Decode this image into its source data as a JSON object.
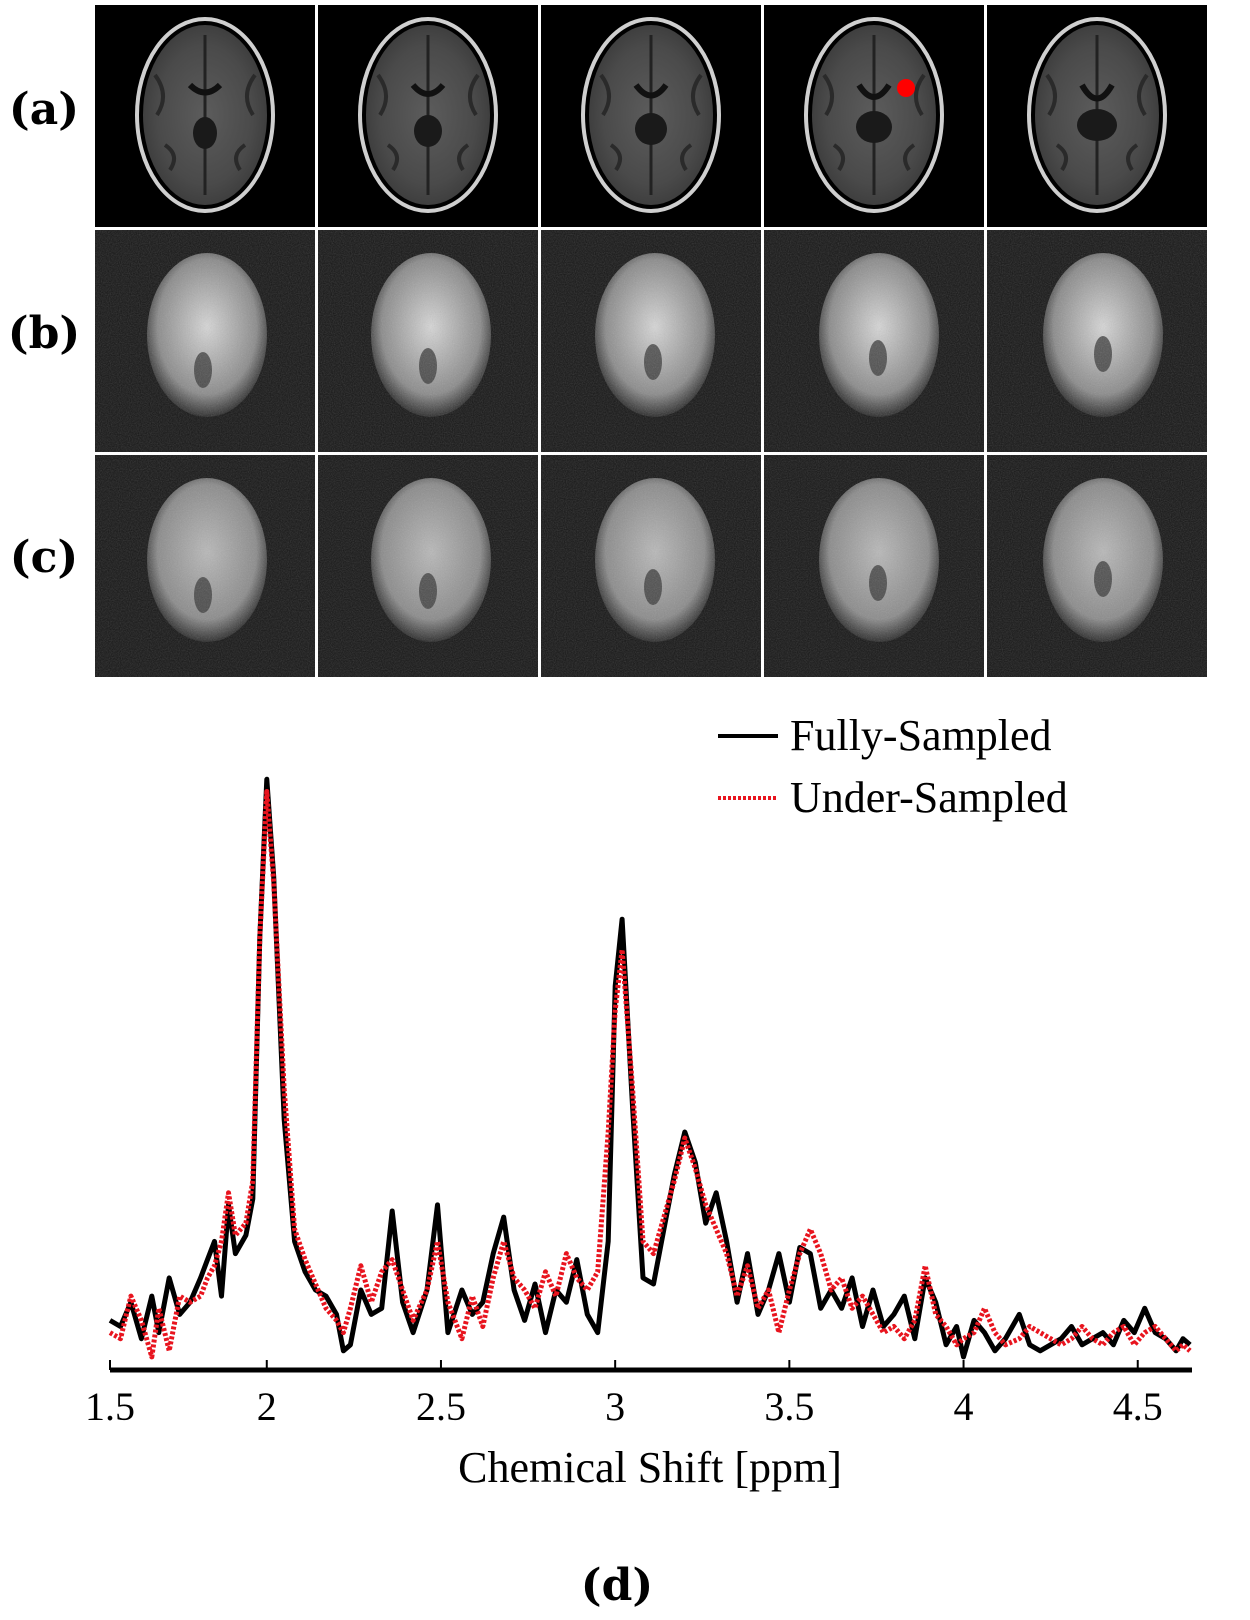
{
  "panels": {
    "rows": [
      {
        "label": "(a)",
        "type": "anatomical"
      },
      {
        "label": "(b)",
        "type": "fully-sampled-map"
      },
      {
        "label": "(c)",
        "type": "under-sampled-map"
      }
    ],
    "slices_per_row": 5,
    "marker": {
      "row": 0,
      "col": 3,
      "color": "#ff0000"
    },
    "d_label": "(d)"
  },
  "chart_data": {
    "type": "line",
    "xlabel": "Chemical Shift [ppm]",
    "xlim": [
      1.55,
      4.65
    ],
    "ylim": [
      0,
      1.0
    ],
    "xticks": [
      1.5,
      2,
      2.5,
      3,
      3.5,
      4,
      4.5
    ],
    "xtick_labels": [
      "1.5",
      "2",
      "2.5",
      "3",
      "3.5",
      "4",
      "4.5"
    ],
    "legend_position": "top-right",
    "series": [
      {
        "name": "Fully-Sampled",
        "color": "#000000",
        "style": "solid",
        "points": [
          [
            1.55,
            0.07
          ],
          [
            1.58,
            0.06
          ],
          [
            1.61,
            0.1
          ],
          [
            1.64,
            0.04
          ],
          [
            1.67,
            0.11
          ],
          [
            1.69,
            0.05
          ],
          [
            1.72,
            0.14
          ],
          [
            1.75,
            0.08
          ],
          [
            1.78,
            0.1
          ],
          [
            1.81,
            0.14
          ],
          [
            1.83,
            0.17
          ],
          [
            1.85,
            0.2
          ],
          [
            1.87,
            0.11
          ],
          [
            1.89,
            0.26
          ],
          [
            1.91,
            0.18
          ],
          [
            1.94,
            0.21
          ],
          [
            1.96,
            0.27
          ],
          [
            1.98,
            0.7
          ],
          [
            2.0,
            0.96
          ],
          [
            2.02,
            0.8
          ],
          [
            2.05,
            0.4
          ],
          [
            2.08,
            0.2
          ],
          [
            2.11,
            0.15
          ],
          [
            2.14,
            0.12
          ],
          [
            2.17,
            0.11
          ],
          [
            2.2,
            0.08
          ],
          [
            2.22,
            0.02
          ],
          [
            2.24,
            0.03
          ],
          [
            2.27,
            0.12
          ],
          [
            2.3,
            0.08
          ],
          [
            2.33,
            0.09
          ],
          [
            2.36,
            0.25
          ],
          [
            2.39,
            0.1
          ],
          [
            2.42,
            0.05
          ],
          [
            2.46,
            0.12
          ],
          [
            2.49,
            0.26
          ],
          [
            2.52,
            0.05
          ],
          [
            2.56,
            0.12
          ],
          [
            2.59,
            0.08
          ],
          [
            2.62,
            0.1
          ],
          [
            2.65,
            0.18
          ],
          [
            2.68,
            0.24
          ],
          [
            2.71,
            0.12
          ],
          [
            2.74,
            0.07
          ],
          [
            2.77,
            0.13
          ],
          [
            2.8,
            0.05
          ],
          [
            2.83,
            0.12
          ],
          [
            2.86,
            0.1
          ],
          [
            2.89,
            0.17
          ],
          [
            2.92,
            0.08
          ],
          [
            2.95,
            0.05
          ],
          [
            2.98,
            0.2
          ],
          [
            3.0,
            0.62
          ],
          [
            3.02,
            0.73
          ],
          [
            3.05,
            0.42
          ],
          [
            3.08,
            0.14
          ],
          [
            3.11,
            0.13
          ],
          [
            3.14,
            0.22
          ],
          [
            3.17,
            0.31
          ],
          [
            3.2,
            0.38
          ],
          [
            3.23,
            0.33
          ],
          [
            3.26,
            0.23
          ],
          [
            3.29,
            0.28
          ],
          [
            3.32,
            0.2
          ],
          [
            3.35,
            0.1
          ],
          [
            3.38,
            0.18
          ],
          [
            3.41,
            0.08
          ],
          [
            3.44,
            0.12
          ],
          [
            3.47,
            0.18
          ],
          [
            3.5,
            0.1
          ],
          [
            3.53,
            0.19
          ],
          [
            3.56,
            0.18
          ],
          [
            3.59,
            0.09
          ],
          [
            3.62,
            0.12
          ],
          [
            3.65,
            0.09
          ],
          [
            3.68,
            0.14
          ],
          [
            3.71,
            0.06
          ],
          [
            3.74,
            0.12
          ],
          [
            3.77,
            0.06
          ],
          [
            3.8,
            0.08
          ],
          [
            3.83,
            0.11
          ],
          [
            3.86,
            0.04
          ],
          [
            3.89,
            0.14
          ],
          [
            3.92,
            0.1
          ],
          [
            3.95,
            0.03
          ],
          [
            3.98,
            0.06
          ],
          [
            4.0,
            0.01
          ],
          [
            4.03,
            0.07
          ],
          [
            4.06,
            0.05
          ],
          [
            4.09,
            0.02
          ],
          [
            4.12,
            0.04
          ],
          [
            4.16,
            0.08
          ],
          [
            4.19,
            0.03
          ],
          [
            4.22,
            0.02
          ],
          [
            4.25,
            0.03
          ],
          [
            4.28,
            0.04
          ],
          [
            4.31,
            0.06
          ],
          [
            4.34,
            0.03
          ],
          [
            4.37,
            0.04
          ],
          [
            4.4,
            0.05
          ],
          [
            4.43,
            0.03
          ],
          [
            4.46,
            0.07
          ],
          [
            4.49,
            0.05
          ],
          [
            4.52,
            0.09
          ],
          [
            4.55,
            0.05
          ],
          [
            4.58,
            0.04
          ],
          [
            4.61,
            0.02
          ],
          [
            4.63,
            0.04
          ],
          [
            4.65,
            0.03
          ]
        ]
      },
      {
        "name": "Under-Sampled",
        "color": "#e8141e",
        "style": "dotted",
        "points": [
          [
            1.55,
            0.05
          ],
          [
            1.58,
            0.04
          ],
          [
            1.61,
            0.11
          ],
          [
            1.64,
            0.07
          ],
          [
            1.67,
            0.01
          ],
          [
            1.69,
            0.09
          ],
          [
            1.72,
            0.02
          ],
          [
            1.75,
            0.11
          ],
          [
            1.78,
            0.1
          ],
          [
            1.81,
            0.11
          ],
          [
            1.83,
            0.14
          ],
          [
            1.85,
            0.16
          ],
          [
            1.87,
            0.2
          ],
          [
            1.89,
            0.28
          ],
          [
            1.91,
            0.21
          ],
          [
            1.94,
            0.23
          ],
          [
            1.96,
            0.3
          ],
          [
            1.98,
            0.7
          ],
          [
            2.0,
            0.94
          ],
          [
            2.02,
            0.79
          ],
          [
            2.05,
            0.45
          ],
          [
            2.08,
            0.22
          ],
          [
            2.11,
            0.17
          ],
          [
            2.14,
            0.13
          ],
          [
            2.17,
            0.09
          ],
          [
            2.2,
            0.07
          ],
          [
            2.22,
            0.05
          ],
          [
            2.24,
            0.09
          ],
          [
            2.27,
            0.16
          ],
          [
            2.3,
            0.1
          ],
          [
            2.33,
            0.15
          ],
          [
            2.36,
            0.17
          ],
          [
            2.39,
            0.12
          ],
          [
            2.42,
            0.07
          ],
          [
            2.46,
            0.12
          ],
          [
            2.49,
            0.2
          ],
          [
            2.52,
            0.1
          ],
          [
            2.56,
            0.04
          ],
          [
            2.59,
            0.11
          ],
          [
            2.62,
            0.06
          ],
          [
            2.65,
            0.14
          ],
          [
            2.68,
            0.2
          ],
          [
            2.71,
            0.14
          ],
          [
            2.74,
            0.12
          ],
          [
            2.77,
            0.09
          ],
          [
            2.8,
            0.15
          ],
          [
            2.83,
            0.11
          ],
          [
            2.86,
            0.18
          ],
          [
            2.89,
            0.14
          ],
          [
            2.92,
            0.12
          ],
          [
            2.95,
            0.15
          ],
          [
            2.98,
            0.38
          ],
          [
            3.0,
            0.58
          ],
          [
            3.02,
            0.68
          ],
          [
            3.05,
            0.45
          ],
          [
            3.08,
            0.2
          ],
          [
            3.11,
            0.18
          ],
          [
            3.14,
            0.24
          ],
          [
            3.17,
            0.3
          ],
          [
            3.2,
            0.37
          ],
          [
            3.23,
            0.32
          ],
          [
            3.26,
            0.26
          ],
          [
            3.29,
            0.22
          ],
          [
            3.32,
            0.18
          ],
          [
            3.35,
            0.11
          ],
          [
            3.38,
            0.16
          ],
          [
            3.41,
            0.09
          ],
          [
            3.44,
            0.12
          ],
          [
            3.47,
            0.05
          ],
          [
            3.5,
            0.12
          ],
          [
            3.53,
            0.18
          ],
          [
            3.56,
            0.22
          ],
          [
            3.59,
            0.18
          ],
          [
            3.62,
            0.12
          ],
          [
            3.65,
            0.14
          ],
          [
            3.68,
            0.09
          ],
          [
            3.71,
            0.11
          ],
          [
            3.74,
            0.08
          ],
          [
            3.77,
            0.05
          ],
          [
            3.8,
            0.06
          ],
          [
            3.83,
            0.04
          ],
          [
            3.86,
            0.07
          ],
          [
            3.89,
            0.16
          ],
          [
            3.92,
            0.08
          ],
          [
            3.95,
            0.06
          ],
          [
            3.98,
            0.03
          ],
          [
            4.0,
            0.04
          ],
          [
            4.03,
            0.05
          ],
          [
            4.06,
            0.09
          ],
          [
            4.09,
            0.05
          ],
          [
            4.12,
            0.03
          ],
          [
            4.16,
            0.04
          ],
          [
            4.19,
            0.06
          ],
          [
            4.22,
            0.05
          ],
          [
            4.25,
            0.04
          ],
          [
            4.28,
            0.03
          ],
          [
            4.31,
            0.04
          ],
          [
            4.34,
            0.06
          ],
          [
            4.37,
            0.04
          ],
          [
            4.4,
            0.03
          ],
          [
            4.43,
            0.05
          ],
          [
            4.46,
            0.06
          ],
          [
            4.49,
            0.03
          ],
          [
            4.52,
            0.05
          ],
          [
            4.55,
            0.06
          ],
          [
            4.58,
            0.04
          ],
          [
            4.61,
            0.02
          ],
          [
            4.63,
            0.03
          ],
          [
            4.65,
            0.02
          ]
        ]
      }
    ]
  }
}
